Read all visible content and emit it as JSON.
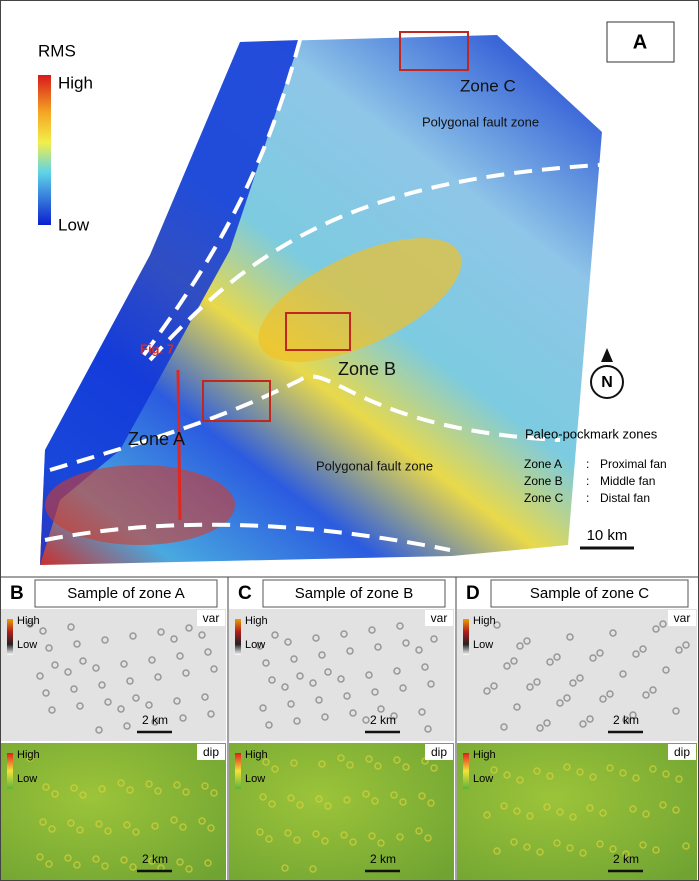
{
  "main": {
    "label": "A",
    "legend": {
      "title": "RMS",
      "high": "High",
      "low": "Low"
    },
    "annotations": [
      "Zone C",
      "Polygonal fault zone",
      "Fig. 7",
      "Zone B",
      "Zone A",
      "Polygonal fault zone"
    ],
    "north": "N",
    "key": {
      "title": "Paleo-pockmark zones",
      "rows": [
        [
          "Zone A",
          ":",
          "Proximal fan"
        ],
        [
          "Zone B",
          ":",
          "Middle fan"
        ],
        [
          "Zone C",
          ":",
          "Distal fan"
        ]
      ]
    },
    "scale_bar": "10 km"
  },
  "panels": [
    {
      "label": "B",
      "title": "Sample of zone A",
      "var": {
        "high": "High",
        "low": "Low",
        "attribute": "var",
        "scale_bar": "2 km"
      },
      "dip": {
        "high": "High",
        "low": "Low",
        "attribute": "dip",
        "scale_bar": "2 km"
      }
    },
    {
      "label": "C",
      "title": "Sample of zone B",
      "var": {
        "high": "High",
        "low": "Low",
        "attribute": "var",
        "scale_bar": "2 km"
      },
      "dip": {
        "high": "High",
        "low": "Low",
        "attribute": "dip",
        "scale_bar": "2 km"
      }
    },
    {
      "label": "D",
      "title": "Sample of zone C",
      "var": {
        "high": "High",
        "low": "Low",
        "attribute": "var",
        "scale_bar": "2 km"
      },
      "dip": {
        "high": "High",
        "low": "Low",
        "attribute": "dip",
        "scale_bar": "2 km"
      }
    }
  ]
}
